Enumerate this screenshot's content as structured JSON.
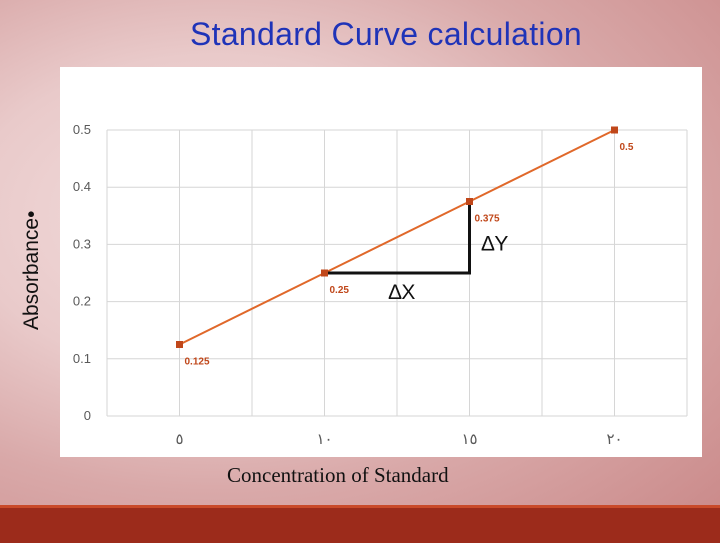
{
  "slide": {
    "title": "Standard Curve calculation",
    "y_axis_title": "Absorbance•",
    "x_axis_title": "Concentration of Standard"
  },
  "colors": {
    "title": "#1f33b8",
    "line": "#e0682a",
    "marker": "#c0471a",
    "label": "#c0471a",
    "grid": "#d6d6d6",
    "footer": "#9c2b1b"
  },
  "chart_data": {
    "type": "line",
    "categories": [
      "٥",
      "١٠",
      "١٥",
      "٢٠"
    ],
    "x": [
      5,
      10,
      15,
      20
    ],
    "values": [
      0.125,
      0.25,
      0.375,
      0.5
    ],
    "point_labels": [
      "0.125",
      "0.25",
      "0.375",
      "0.5"
    ],
    "y_ticks": [
      "0",
      "0.1",
      "0.2",
      "0.3",
      "0.4",
      "0.5"
    ],
    "ylim": [
      0,
      0.5
    ],
    "grid": true,
    "annotations": {
      "delta_x_label": "∆X",
      "delta_y_label": "∆Y",
      "from_point": 1,
      "to_point": 2
    }
  }
}
